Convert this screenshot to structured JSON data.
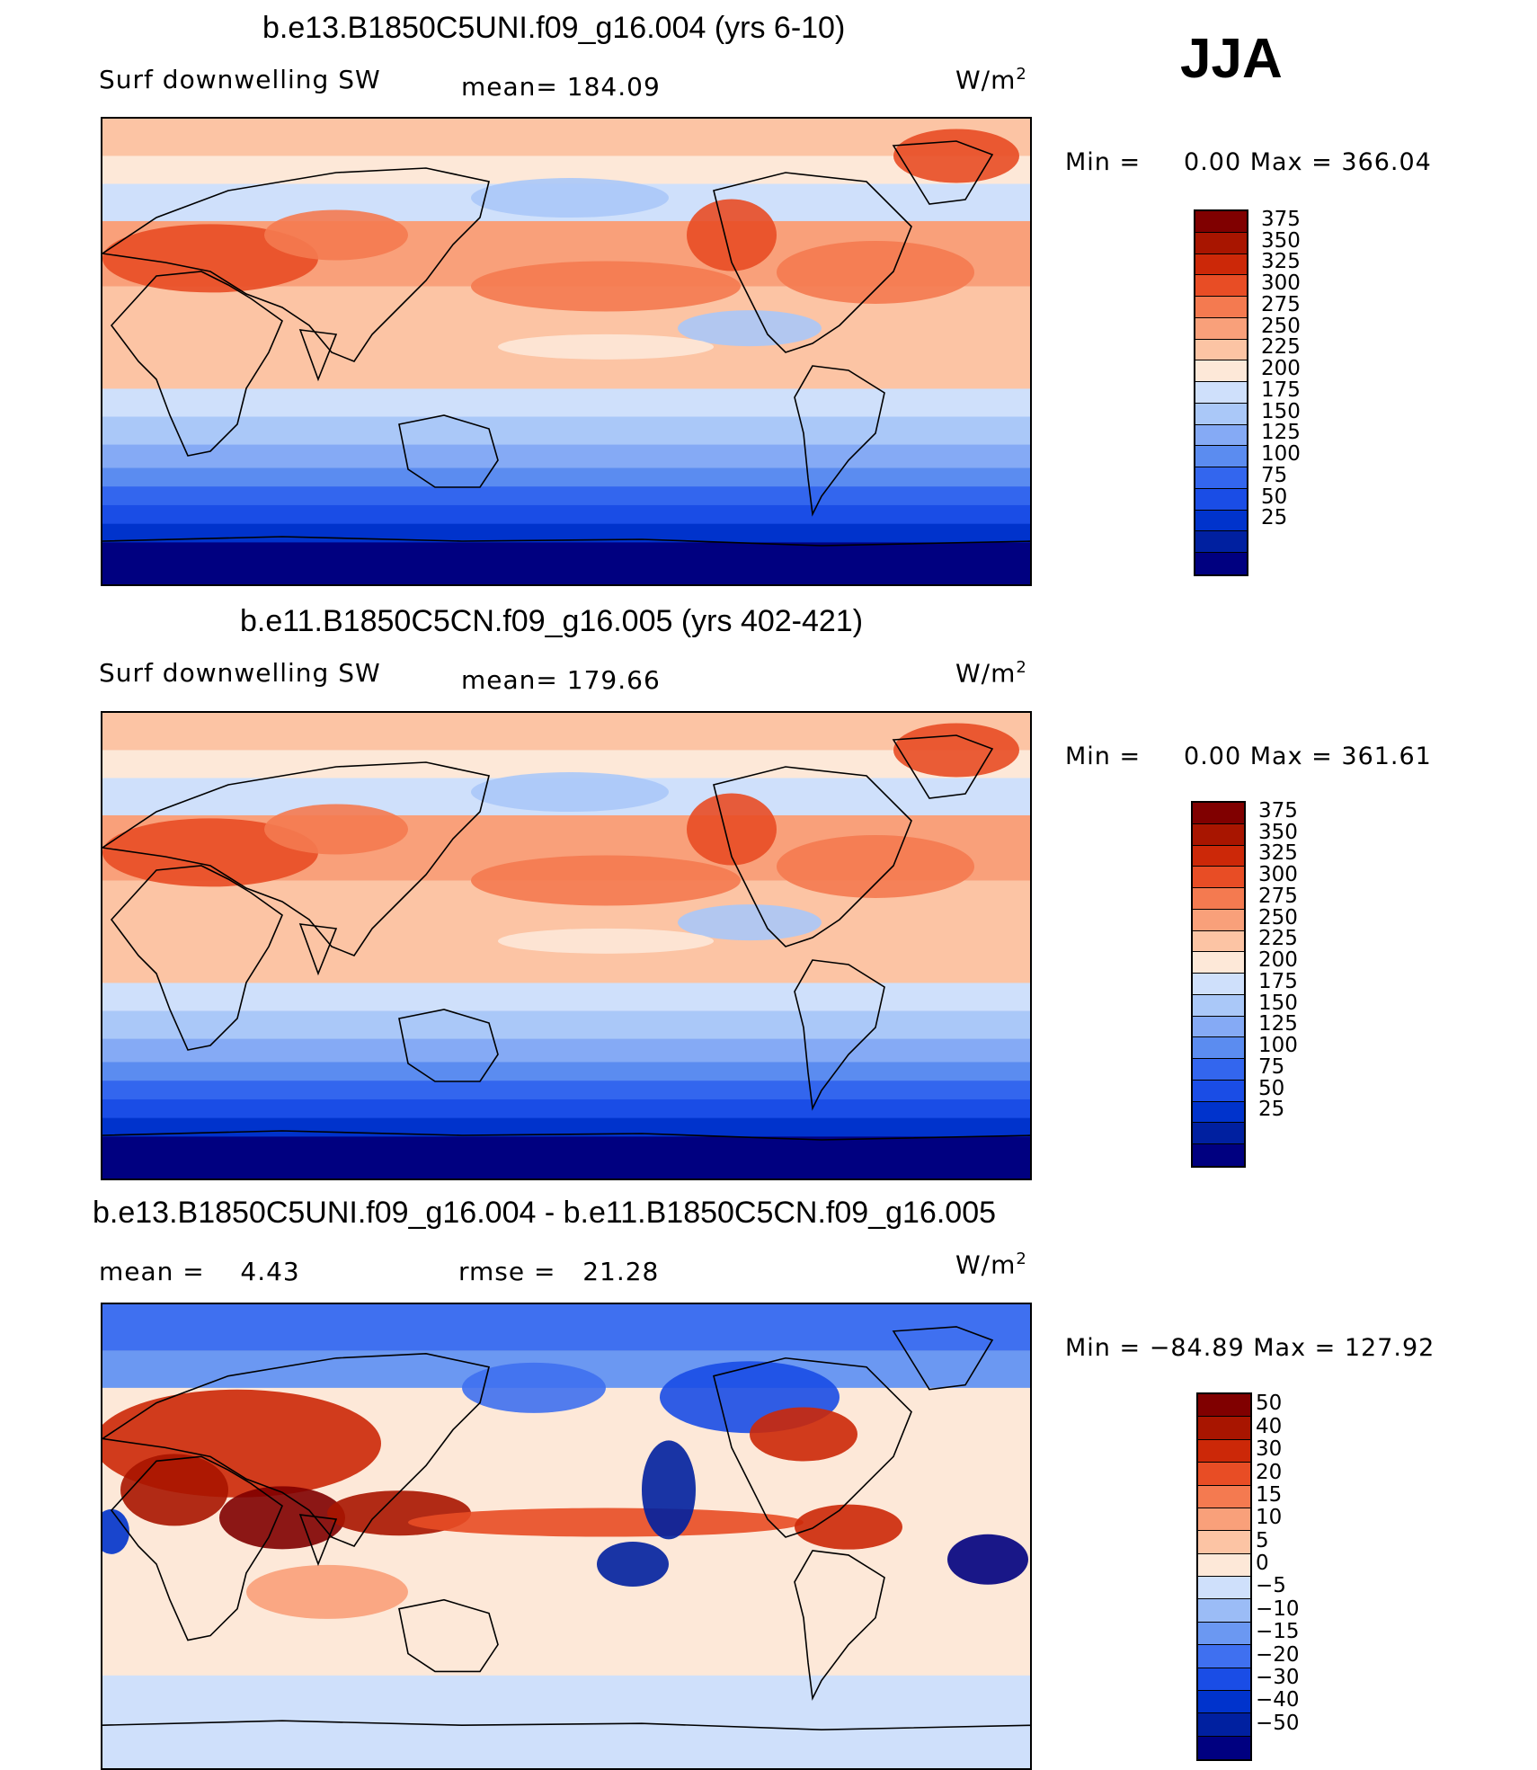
{
  "season": "JJA",
  "units_base": "W/m",
  "units_exp": "2",
  "colors": {
    "abs_scale": [
      "#000080",
      "#0020a0",
      "#0033cc",
      "#1a4de6",
      "#3366ee",
      "#5b8cf0",
      "#85aaf5",
      "#aac8f8",
      "#cfe0fb",
      "#fde8d8",
      "#fcc4a4",
      "#f9a07a",
      "#f47a50",
      "#e84d25",
      "#cc2808",
      "#a81500",
      "#800000"
    ],
    "diff_scale": [
      "#000080",
      "#0020a0",
      "#0033cc",
      "#1a4de6",
      "#3f70f0",
      "#6b98f2",
      "#9bbcf6",
      "#cfe0fb",
      "#fde8d8",
      "#fcc4a4",
      "#f9a07a",
      "#f47a50",
      "#e84d25",
      "#cc2808",
      "#a81500",
      "#800000"
    ]
  },
  "chart_data": [
    {
      "type": "heatmap",
      "title": "b.e13.B1850C5UNI.f09_g16.004 (yrs 6-10)",
      "variable": "Surf downwelling SW",
      "stat_label": "mean=",
      "stat_value": "184.09",
      "min_label": "Min =",
      "min_value": "0.00",
      "max_label": "Max =",
      "max_value": "366.04",
      "levels": [
        "375",
        "350",
        "325",
        "300",
        "275",
        "250",
        "225",
        "200",
        "175",
        "150",
        "125",
        "100",
        "75",
        "50",
        "25"
      ]
    },
    {
      "type": "heatmap",
      "title": "b.e11.B1850C5CN.f09_g16.005 (yrs 402-421)",
      "variable": "Surf downwelling SW",
      "stat_label": "mean=",
      "stat_value": "179.66",
      "min_label": "Min =",
      "min_value": "0.00",
      "max_label": "Max =",
      "max_value": "361.61",
      "levels": [
        "375",
        "350",
        "325",
        "300",
        "275",
        "250",
        "225",
        "200",
        "175",
        "150",
        "125",
        "100",
        "75",
        "50",
        "25"
      ]
    },
    {
      "type": "heatmap",
      "title": "b.e13.B1850C5UNI.f09_g16.004 - b.e11.B1850C5CN.f09_g16.005",
      "mean_label": "mean =",
      "mean_value": "4.43",
      "rmse_label": "rmse =",
      "rmse_value": "21.28",
      "min_label": "Min =",
      "min_value": "−84.89",
      "max_label": "Max =",
      "max_value": "127.92",
      "levels": [
        "50",
        "40",
        "30",
        "20",
        "15",
        "10",
        "5",
        "0",
        "−5",
        "−10",
        "−15",
        "−20",
        "−30",
        "−40",
        "−50"
      ]
    }
  ]
}
